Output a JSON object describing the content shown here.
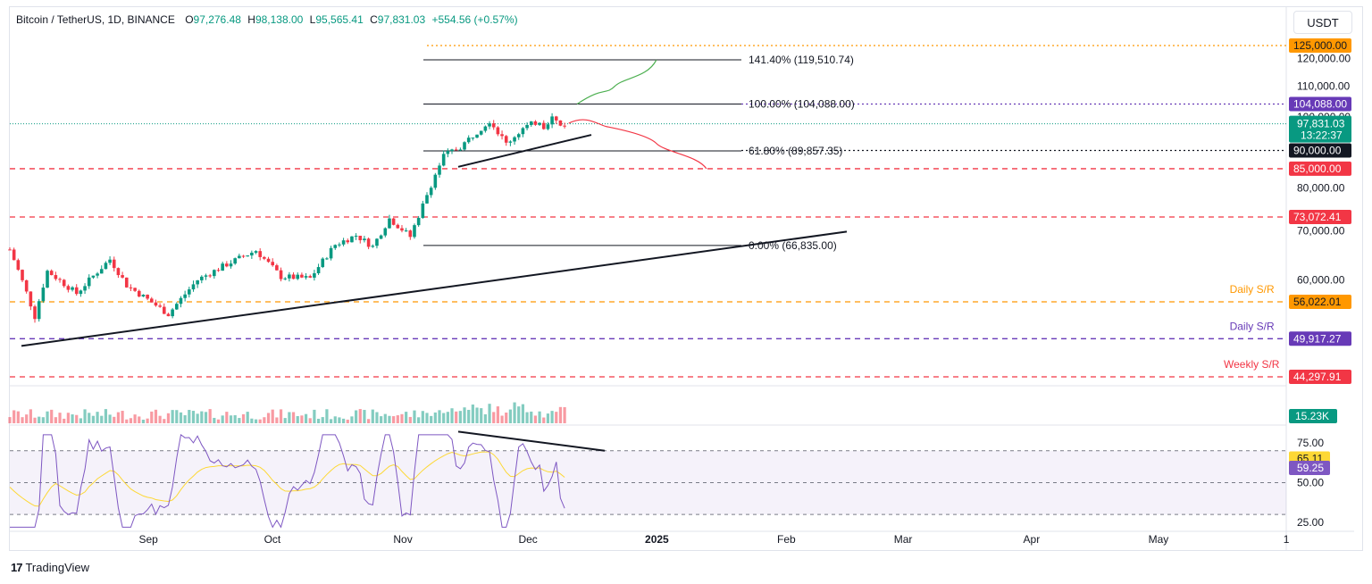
{
  "header": {
    "symbol": "Bitcoin / TetherUS, 1D, BINANCE",
    "o_label": "O",
    "o": "97,276.48",
    "h_label": "H",
    "h": "98,138.00",
    "l_label": "L",
    "l": "95,565.41",
    "c_label": "C",
    "c": "97,831.03",
    "change": "+554.56 (+0.57%)"
  },
  "currency_button": "USDT",
  "footer": {
    "logo": "17",
    "brand": "TradingView"
  },
  "colors": {
    "up": "#089981",
    "down": "#f23645",
    "accent_orange": "#ff9800",
    "purple": "#673ab7",
    "rsi": "#7e57c2",
    "rsi_ma": "#fdd835",
    "fib": "#131722"
  },
  "chart_data": {
    "type": "candlestick",
    "title": "Bitcoin / TetherUS, 1D, BINANCE",
    "price_axis_ticks": [
      "120,000.00",
      "110,000.00",
      "100,000.00",
      "80,000.00",
      "70,000.00",
      "60,000.00"
    ],
    "time_axis_ticks": [
      "Sep",
      "Oct",
      "Nov",
      "Dec",
      "2025",
      "Feb",
      "Mar",
      "Apr",
      "May",
      "1"
    ],
    "x_range": [
      "2024-07-30",
      "2025-06-01"
    ],
    "price_range": [
      44000,
      125000
    ],
    "close_path": [
      [
        "2024-07-30",
        66000
      ],
      [
        "2024-08-05",
        53500
      ],
      [
        "2024-08-08",
        61700
      ],
      [
        "2024-08-15",
        57500
      ],
      [
        "2024-08-23",
        64000
      ],
      [
        "2024-08-27",
        59000
      ],
      [
        "2024-09-06",
        53900
      ],
      [
        "2024-09-13",
        60000
      ],
      [
        "2024-09-20",
        63000
      ],
      [
        "2024-09-27",
        65800
      ],
      [
        "2024-10-03",
        60600
      ],
      [
        "2024-10-10",
        60300
      ],
      [
        "2024-10-16",
        67000
      ],
      [
        "2024-10-21",
        69000
      ],
      [
        "2024-10-25",
        66600
      ],
      [
        "2024-10-29",
        72700
      ],
      [
        "2024-11-03",
        68700
      ],
      [
        "2024-11-06",
        75800
      ],
      [
        "2024-11-11",
        88500
      ],
      [
        "2024-11-15",
        91000
      ],
      [
        "2024-11-22",
        98900
      ],
      [
        "2024-11-26",
        91900
      ],
      [
        "2024-11-30",
        96400
      ],
      [
        "2024-12-04",
        98800
      ],
      [
        "2024-12-05",
        97000
      ],
      [
        "2024-12-07",
        99900
      ],
      [
        "2024-12-09",
        97300
      ],
      [
        "2024-12-10",
        97831
      ]
    ],
    "last_price": "97,831.03",
    "countdown": "13:22:37",
    "fib_levels": [
      {
        "label": "141.40% (119,510.74)",
        "value": 119510.74
      },
      {
        "label": "100.00% (104,088.00)",
        "value": 104088
      },
      {
        "label": "61.80% (89,857.35)",
        "value": 89857.35
      },
      {
        "label": "0.00% (66,835.00)",
        "value": 66835
      }
    ],
    "horizontal_levels": [
      {
        "value": 125000,
        "tag": "125,000.00",
        "color": "#ff9800",
        "style": "dotted"
      },
      {
        "value": 104088,
        "tag": "104,088.00",
        "color": "#673ab7",
        "style": "dotted"
      },
      {
        "value": 90000,
        "tag": "90,000.00",
        "color": "#131722",
        "style": "dotted"
      },
      {
        "value": 85000,
        "tag": "85,000.00",
        "color": "#f23645",
        "style": "dashed"
      },
      {
        "value": 73072.41,
        "tag": "73,072.41",
        "color": "#f23645",
        "style": "dashed"
      },
      {
        "value": 56022.01,
        "tag": "56,022.01",
        "color": "#ff9800",
        "style": "dashed",
        "label": "Daily S/R"
      },
      {
        "value": 49917.27,
        "tag": "49,917.27",
        "color": "#673ab7",
        "style": "dashed",
        "label": "Daily S/R"
      },
      {
        "value": 44297.91,
        "tag": "44,297.91",
        "color": "#f23645",
        "style": "dashed",
        "label": "Weekly S/R"
      }
    ],
    "projection_up": [
      [
        "2024-12-13",
        104088
      ],
      [
        "2024-12-22",
        110000
      ],
      [
        "2025-01-01",
        119510
      ]
    ],
    "projection_down": [
      [
        "2024-12-11",
        98000
      ],
      [
        "2024-12-18",
        97500
      ],
      [
        "2025-01-01",
        92000
      ],
      [
        "2025-01-13",
        85000
      ]
    ],
    "volume_last": "15.23K",
    "rsi": {
      "value": "59.25",
      "ma_value": "65.11",
      "ticks": [
        "75.00",
        "50.00",
        "25.00"
      ],
      "range": [
        20,
        85
      ],
      "overbought": 70,
      "mid": 50,
      "oversold": 30
    }
  }
}
